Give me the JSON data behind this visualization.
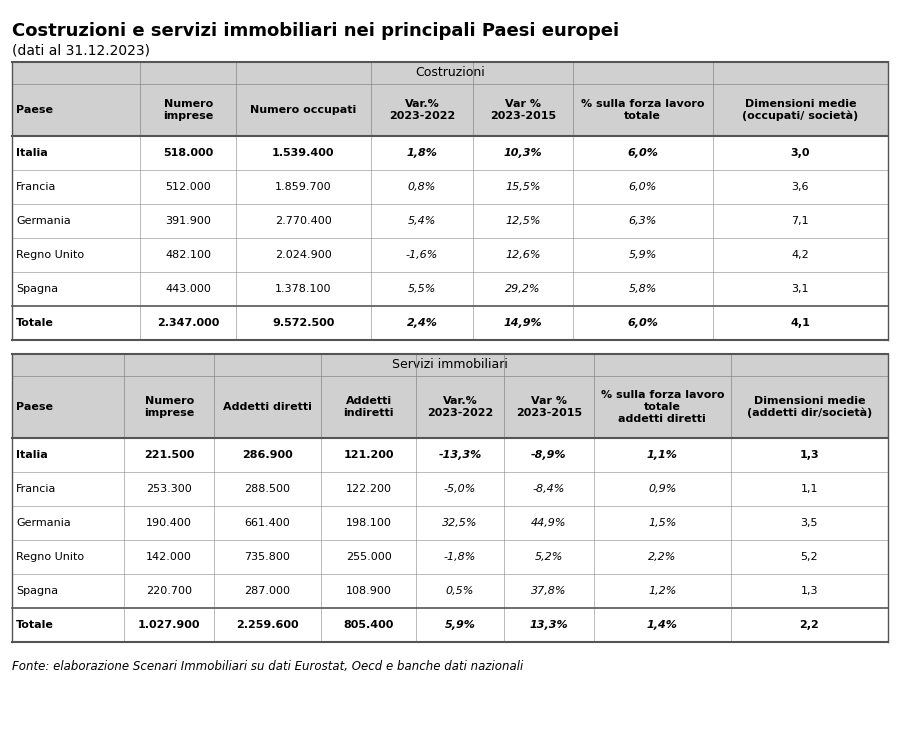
{
  "title": "Costruzioni e servizi immobiliari nei principali Paesi europei",
  "subtitle": "(dati al 31.12.2023)",
  "fonte": "Fonte: elaborazione Scenari Immobiliari su dati Eurostat, Oecd e banche dati nazionali",
  "costruzioni_header": "Costruzioni",
  "costruzioni_col_headers": [
    "Paese",
    "Numero\nimprese",
    "Numero occupati",
    "Var.%\n2023-2022",
    "Var %\n2023-2015",
    "% sulla forza lavoro\ntotale",
    "Dimensioni medie\n(occupati/ società)"
  ],
  "costruzioni_rows": [
    [
      "Italia",
      "518.000",
      "1.539.400",
      "1,8%",
      "10,3%",
      "6,0%",
      "3,0"
    ],
    [
      "Francia",
      "512.000",
      "1.859.700",
      "0,8%",
      "15,5%",
      "6,0%",
      "3,6"
    ],
    [
      "Germania",
      "391.900",
      "2.770.400",
      "5,4%",
      "12,5%",
      "6,3%",
      "7,1"
    ],
    [
      "Regno Unito",
      "482.100",
      "2.024.900",
      "-1,6%",
      "12,6%",
      "5,9%",
      "4,2"
    ],
    [
      "Spagna",
      "443.000",
      "1.378.100",
      "5,5%",
      "29,2%",
      "5,8%",
      "3,1"
    ],
    [
      "Totale",
      "2.347.000",
      "9.572.500",
      "2,4%",
      "14,9%",
      "6,0%",
      "4,1"
    ]
  ],
  "costruzioni_bold_rows": [
    0,
    5
  ],
  "servizi_header": "Servizi immobiliari",
  "servizi_col_headers": [
    "Paese",
    "Numero\nimprese",
    "Addetti diretti",
    "Addetti\nindiretti",
    "Var.%\n2023-2022",
    "Var %\n2023-2015",
    "% sulla forza lavoro\ntotale\naddetti diretti",
    "Dimensioni medie\n(addetti dir/società)"
  ],
  "servizi_rows": [
    [
      "Italia",
      "221.500",
      "286.900",
      "121.200",
      "-13,3%",
      "-8,9%",
      "1,1%",
      "1,3"
    ],
    [
      "Francia",
      "253.300",
      "288.500",
      "122.200",
      "-5,0%",
      "-8,4%",
      "0,9%",
      "1,1"
    ],
    [
      "Germania",
      "190.400",
      "661.400",
      "198.100",
      "32,5%",
      "44,9%",
      "1,5%",
      "3,5"
    ],
    [
      "Regno Unito",
      "142.000",
      "735.800",
      "255.000",
      "-1,8%",
      "5,2%",
      "2,2%",
      "5,2"
    ],
    [
      "Spagna",
      "220.700",
      "287.000",
      "108.900",
      "0,5%",
      "37,8%",
      "1,2%",
      "1,3"
    ],
    [
      "Totale",
      "1.027.900",
      "2.259.600",
      "805.400",
      "5,9%",
      "13,3%",
      "1,4%",
      "2,2"
    ]
  ],
  "servizi_bold_rows": [
    0,
    5
  ],
  "table_bg": "#d8d8d8",
  "header_bg": "#d0d0d0",
  "data_bg": "#ffffff",
  "border_color": "#888888",
  "thick_border": "#555555",
  "text_color": "#000000",
  "title_fontsize": 13,
  "subtitle_fontsize": 10,
  "header_fontsize": 8,
  "cell_fontsize": 8,
  "fonte_fontsize": 8.5,
  "c1_col_weights": [
    1.1,
    0.82,
    1.15,
    0.88,
    0.85,
    1.2,
    1.5
  ],
  "c2_col_weights": [
    1.0,
    0.8,
    0.95,
    0.85,
    0.78,
    0.8,
    1.22,
    1.4
  ]
}
